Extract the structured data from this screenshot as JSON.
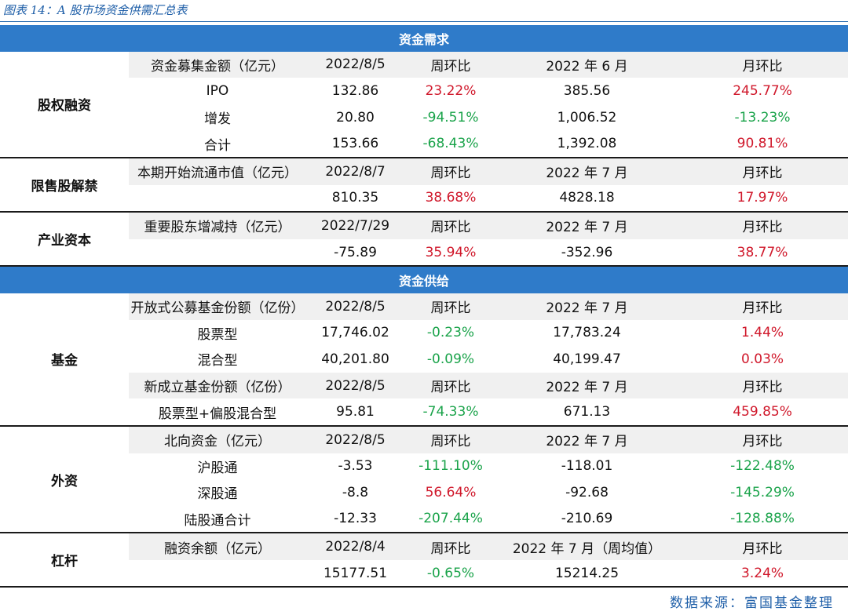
{
  "caption": "图表 14：A 股市场资金供需汇总表",
  "source": "数据来源：富国基金整理",
  "colors": {
    "header_bg": "#2f7bc9",
    "positive": "#d0182b",
    "negative": "#1aa34a",
    "shade": "#f0f0f0"
  },
  "rows": [
    {
      "kind": "section",
      "title": "资金需求"
    },
    {
      "kind": "data",
      "cat": "股权融资",
      "span": 4,
      "shaded": true,
      "cells": [
        "资金募集金额（亿元）",
        "2022/8/5",
        "周环比",
        "2022 年 6 月",
        "月环比"
      ],
      "tones": [
        "",
        "",
        "",
        "",
        ""
      ]
    },
    {
      "kind": "data",
      "cells": [
        "IPO",
        "132.86",
        "23.22%",
        "385.56",
        "245.77%"
      ],
      "tones": [
        "",
        "",
        "pos",
        "",
        "pos"
      ]
    },
    {
      "kind": "data",
      "cells": [
        "增发",
        "20.80",
        "-94.51%",
        "1,006.52",
        "-13.23%"
      ],
      "tones": [
        "",
        "",
        "neg",
        "",
        "neg"
      ]
    },
    {
      "kind": "data",
      "cells": [
        "合计",
        "153.66",
        "-68.43%",
        "1,392.08",
        "90.81%"
      ],
      "tones": [
        "",
        "",
        "neg",
        "",
        "pos"
      ]
    },
    {
      "kind": "data",
      "cat": "限售股解禁",
      "span": 2,
      "shaded": true,
      "groupStart": true,
      "cells": [
        "本期开始流通市值（亿元）",
        "2022/8/7",
        "周环比",
        "2022 年 7 月",
        "月环比"
      ],
      "tones": [
        "",
        "",
        "",
        "",
        ""
      ]
    },
    {
      "kind": "data",
      "cells": [
        "",
        "810.35",
        "38.68%",
        "4828.18",
        "17.97%"
      ],
      "tones": [
        "",
        "",
        "pos",
        "",
        "pos"
      ]
    },
    {
      "kind": "data",
      "cat": "产业资本",
      "span": 2,
      "shaded": true,
      "groupStart": true,
      "cells": [
        "重要股东增减持（亿元）",
        "2022/7/29",
        "周环比",
        "2022 年 7 月",
        "月环比"
      ],
      "tones": [
        "",
        "",
        "",
        "",
        ""
      ]
    },
    {
      "kind": "data",
      "cells": [
        "",
        "-75.89",
        "35.94%",
        "-352.96",
        "38.77%"
      ],
      "tones": [
        "",
        "",
        "pos",
        "",
        "pos"
      ]
    },
    {
      "kind": "section",
      "title": "资金供给",
      "groupStart": true
    },
    {
      "kind": "data",
      "cat": "基金",
      "span": 5,
      "shaded": true,
      "cells": [
        "开放式公募基金份额（亿份）",
        "2022/8/5",
        "周环比",
        "2022 年 7 月",
        "月环比"
      ],
      "tones": [
        "",
        "",
        "",
        "",
        ""
      ]
    },
    {
      "kind": "data",
      "cells": [
        "股票型",
        "17,746.02",
        "-0.23%",
        "17,783.24",
        "1.44%"
      ],
      "tones": [
        "",
        "",
        "neg",
        "",
        "pos"
      ]
    },
    {
      "kind": "data",
      "cells": [
        "混合型",
        "40,201.80",
        "-0.09%",
        "40,199.47",
        "0.03%"
      ],
      "tones": [
        "",
        "",
        "neg",
        "",
        "pos"
      ]
    },
    {
      "kind": "data",
      "shaded": true,
      "cells": [
        "新成立基金份额（亿份）",
        "2022/8/5",
        "周环比",
        "2022 年 7 月",
        "月环比"
      ],
      "tones": [
        "",
        "",
        "",
        "",
        ""
      ]
    },
    {
      "kind": "data",
      "cells": [
        "股票型+偏股混合型",
        "95.81",
        "-74.33%",
        "671.13",
        "459.85%"
      ],
      "tones": [
        "",
        "",
        "neg",
        "",
        "pos"
      ]
    },
    {
      "kind": "data",
      "cat": "外资",
      "span": 4,
      "shaded": true,
      "groupStart": true,
      "cells": [
        "北向资金（亿元）",
        "2022/8/5",
        "周环比",
        "2022 年 7 月",
        "月环比"
      ],
      "tones": [
        "",
        "",
        "",
        "",
        ""
      ]
    },
    {
      "kind": "data",
      "cells": [
        "沪股通",
        "-3.53",
        "-111.10%",
        "-118.01",
        "-122.48%"
      ],
      "tones": [
        "",
        "",
        "neg",
        "",
        "neg"
      ]
    },
    {
      "kind": "data",
      "cells": [
        "深股通",
        "-8.8",
        "56.64%",
        "-92.68",
        "-145.29%"
      ],
      "tones": [
        "",
        "",
        "pos",
        "",
        "neg"
      ]
    },
    {
      "kind": "data",
      "cells": [
        "陆股通合计",
        "-12.33",
        "-207.44%",
        "-210.69",
        "-128.88%"
      ],
      "tones": [
        "",
        "",
        "neg",
        "",
        "neg"
      ]
    },
    {
      "kind": "data",
      "cat": "杠杆",
      "span": 2,
      "shaded": true,
      "groupStart": true,
      "cells": [
        "融资余额（亿元）",
        "2022/8/4",
        "周环比",
        "2022 年 7 月（周均值）",
        "月环比"
      ],
      "tones": [
        "",
        "",
        "",
        "",
        ""
      ]
    },
    {
      "kind": "data",
      "cells": [
        "",
        "15177.51",
        "-0.65%",
        "15214.25",
        "3.24%"
      ],
      "tones": [
        "",
        "",
        "neg",
        "",
        "pos"
      ]
    }
  ]
}
